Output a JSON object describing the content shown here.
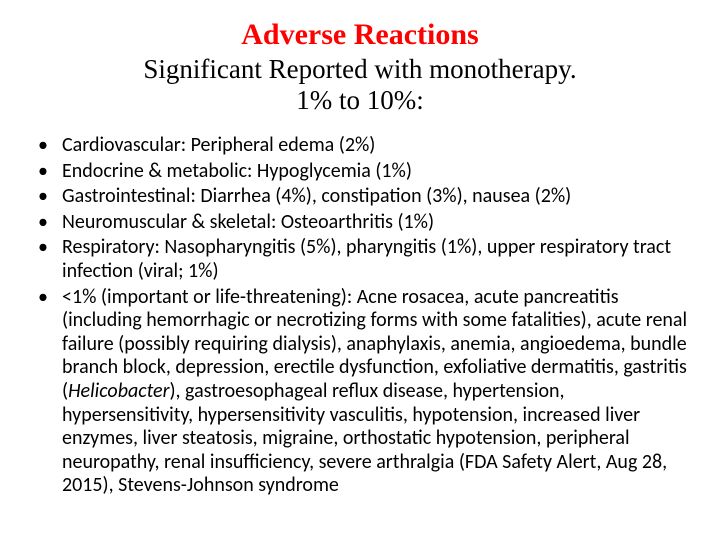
{
  "title": "Adverse Reactions",
  "subtitle_line1": "Significant Reported with monotherapy.",
  "subtitle_line2": "1% to 10%:",
  "bullets": [
    "Cardiovascular: Peripheral edema (2%)",
    "Endocrine & metabolic: Hypoglycemia (1%)",
    "Gastrointestinal: Diarrhea (4%), constipation (3%), nausea (2%)",
    "Neuromuscular & skeletal: Osteoarthritis (1%)",
    "Respiratory: Nasopharyngitis (5%), pharyngitis (1%), upper respiratory tract infection (viral; 1%)"
  ],
  "last_bullet": {
    "pre": "<1% (important or life-threatening): Acne rosacea, acute pancreatitis (including hemorrhagic or necrotizing forms with some fatalities), acute renal failure (possibly requiring dialysis), anaphylaxis, anemia, angioedema, bundle branch block, depression, erectile dysfunction, exfoliative dermatitis, gastritis (",
    "italic": "Helicobacter",
    "post": "), gastroesophageal reflux disease, hypertension, hypersensitivity, hypersensitivity vasculitis, hypotension, increased liver enzymes, liver steatosis, migraine, orthostatic hypotension, peripheral neuropathy, renal insufficiency, severe arthralgia (FDA Safety Alert, Aug 28, 2015), Stevens-Johnson syndrome"
  },
  "colors": {
    "title": "#ff0000",
    "body": "#000000",
    "background": "#ffffff"
  },
  "fonts": {
    "title_family": "Times New Roman",
    "body_family": "Calibri",
    "title_size_pt": 30,
    "subtitle_size_pt": 27,
    "bullet_size_pt": 20
  }
}
